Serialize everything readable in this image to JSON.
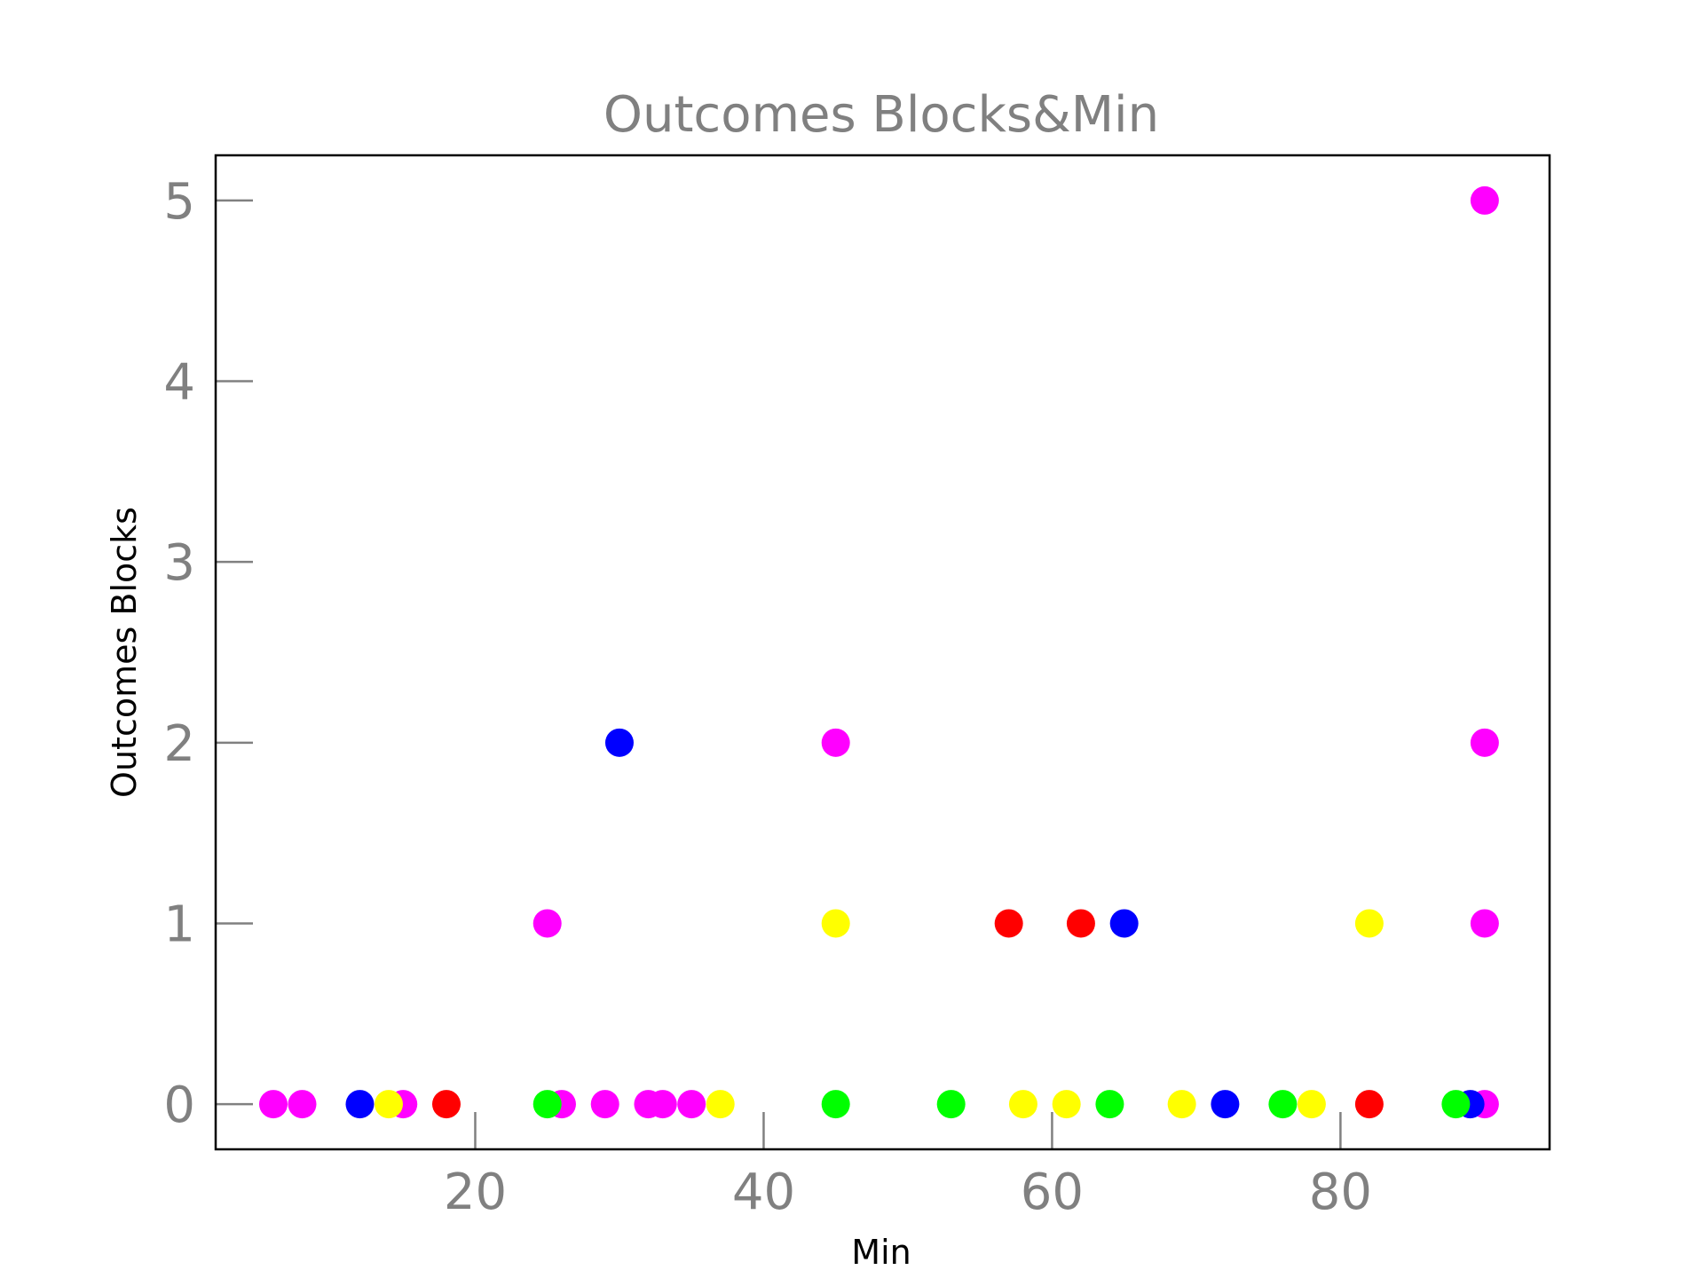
{
  "chart_data": {
    "type": "scatter",
    "title": "Outcomes Blocks&Min",
    "xlabel": "Min",
    "ylabel": "Outcomes Blocks",
    "xlim": [
      2,
      94.5
    ],
    "ylim": [
      -0.25,
      5.25
    ],
    "xticks": [
      20,
      40,
      60,
      80
    ],
    "yticks": [
      0,
      1,
      2,
      3,
      4,
      5
    ],
    "xtick_labels": [
      "20",
      "40",
      "60",
      "80"
    ],
    "ytick_labels": [
      "0",
      "1",
      "2",
      "3",
      "4",
      "5"
    ],
    "grid": false,
    "legend": "none",
    "colors": {
      "magenta": "#ff00ff",
      "blue": "#0000ff",
      "yellow": "#ffff00",
      "red": "#ff0000",
      "green": "#00ff00"
    },
    "series": [
      {
        "color": "magenta",
        "points": [
          [
            6,
            0
          ],
          [
            8,
            0
          ],
          [
            15,
            0
          ],
          [
            25,
            1
          ],
          [
            26,
            0
          ],
          [
            29,
            0
          ],
          [
            32,
            0
          ],
          [
            33,
            0
          ],
          [
            35,
            0
          ],
          [
            45,
            2
          ],
          [
            90,
            5
          ],
          [
            90,
            2
          ],
          [
            90,
            1
          ],
          [
            90,
            0
          ]
        ]
      },
      {
        "color": "blue",
        "points": [
          [
            12,
            0
          ],
          [
            30,
            2
          ],
          [
            65,
            1
          ],
          [
            72,
            0
          ],
          [
            89,
            0
          ]
        ]
      },
      {
        "color": "yellow",
        "points": [
          [
            14,
            0
          ],
          [
            37,
            0
          ],
          [
            45,
            1
          ],
          [
            58,
            0
          ],
          [
            61,
            0
          ],
          [
            69,
            0
          ],
          [
            78,
            0
          ],
          [
            82,
            1
          ]
        ]
      },
      {
        "color": "red",
        "points": [
          [
            18,
            0
          ],
          [
            57,
            1
          ],
          [
            62,
            1
          ],
          [
            82,
            0
          ]
        ]
      },
      {
        "color": "green",
        "points": [
          [
            25,
            0
          ],
          [
            45,
            0
          ],
          [
            53,
            0
          ],
          [
            64,
            0
          ],
          [
            76,
            0
          ],
          [
            88,
            0
          ]
        ]
      }
    ]
  }
}
